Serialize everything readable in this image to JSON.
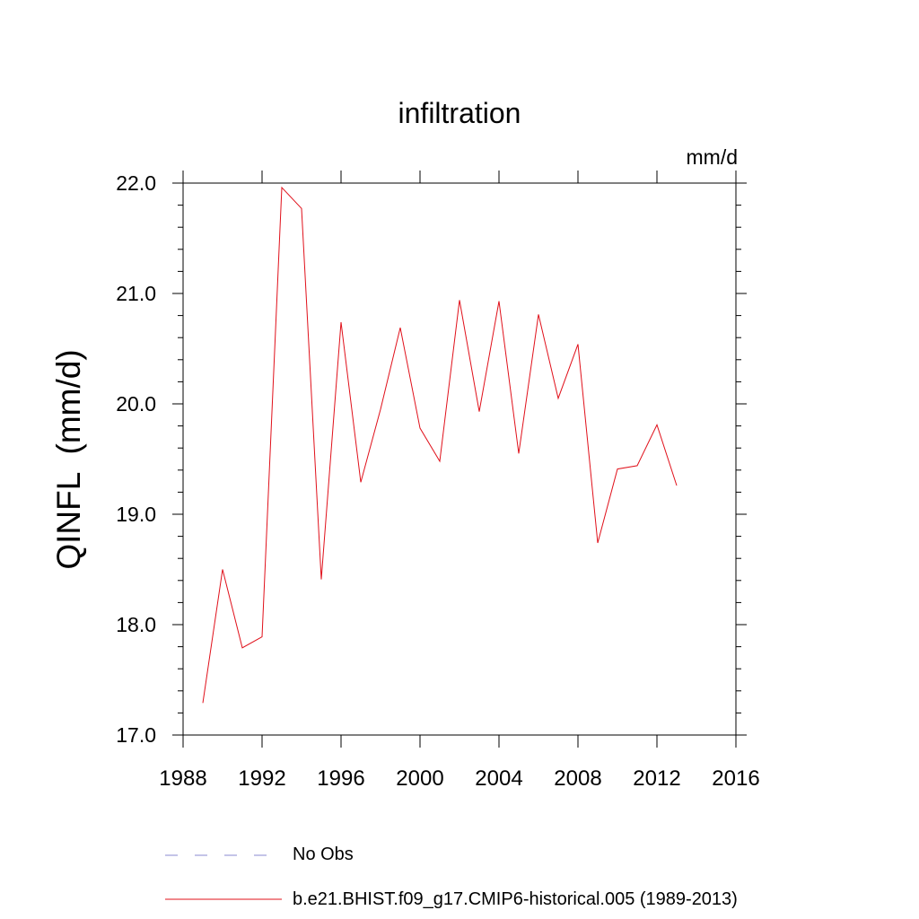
{
  "chart_data": {
    "type": "line",
    "title": "infiltration",
    "units_label": "mm/d",
    "ylabel": "QINFL  (mm/d)",
    "xlabel": "",
    "xlim": [
      1988,
      2016
    ],
    "ylim": [
      17.0,
      22.0
    ],
    "x_ticks": [
      1988,
      1992,
      1996,
      2000,
      2004,
      2008,
      2012,
      2016
    ],
    "y_ticks": [
      "17.0",
      "18.0",
      "19.0",
      "20.0",
      "21.0",
      "22.0"
    ],
    "grid": false,
    "legend_position": "bottom",
    "legend": [
      {
        "label": "No Obs",
        "color": "#8a8ad0",
        "style": "dashed"
      },
      {
        "label": "b.e21.BHIST.f09_g17.CMIP6-historical.005 (1989-2013)",
        "color": "#e0101a",
        "style": "solid"
      }
    ],
    "series": [
      {
        "color": "#e0101a",
        "x": [
          1989,
          1990,
          1991,
          1992,
          1993,
          1994,
          1995,
          1996,
          1997,
          1998,
          1999,
          2000,
          2001,
          2002,
          2003,
          2004,
          2005,
          2006,
          2007,
          2008,
          2009,
          2010,
          2011,
          2012,
          2013
        ],
        "values": [
          17.29,
          18.5,
          17.79,
          17.89,
          21.96,
          21.77,
          18.41,
          20.74,
          19.29,
          19.95,
          20.69,
          19.78,
          19.48,
          20.94,
          19.93,
          20.93,
          19.55,
          20.81,
          20.05,
          20.54,
          18.74,
          19.41,
          19.44,
          19.81,
          19.26
        ]
      }
    ]
  }
}
